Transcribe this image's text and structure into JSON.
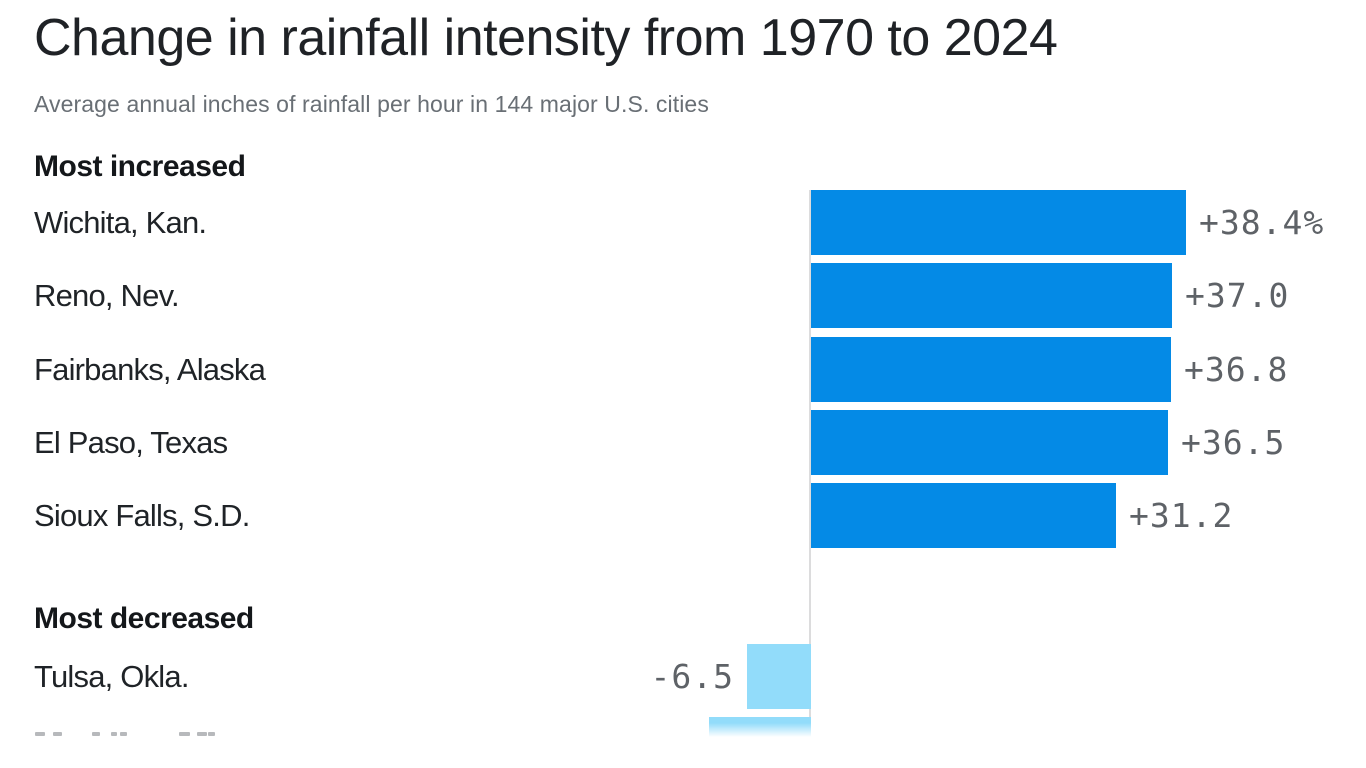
{
  "header": {
    "title": "Change in rainfall intensity from 1970 to 2024",
    "subtitle": "Average annual inches of rainfall per hour in 144 major U.S. cities"
  },
  "chart_data": {
    "type": "bar",
    "orientation": "horizontal",
    "unit": "percent change",
    "value_axis_range_px_per_unit_hint": "bars share a common zero baseline; positive bars extend right, negative bars extend left",
    "colors": {
      "increase": "#048ae6",
      "decrease": "#92dcfa"
    },
    "sections": [
      {
        "heading": "Most increased",
        "rows": [
          {
            "label": "Wichita, Kan.",
            "value": 38.4,
            "display": "+38.4%"
          },
          {
            "label": "Reno, Nev.",
            "value": 37.0,
            "display": "+37.0"
          },
          {
            "label": "Fairbanks, Alaska",
            "value": 36.8,
            "display": "+36.8"
          },
          {
            "label": "El Paso, Texas",
            "value": 36.5,
            "display": "+36.5"
          },
          {
            "label": "Sioux Falls, S.D.",
            "value": 31.2,
            "display": "+31.2"
          }
        ]
      },
      {
        "heading": "Most decreased",
        "rows": [
          {
            "label": "Tulsa, Okla.",
            "value": -6.5,
            "display": "-6.5"
          },
          {
            "label": "",
            "value": -10.4,
            "display": "",
            "clipped": true,
            "value_estimated_from_bar_width": true
          }
        ]
      }
    ]
  }
}
